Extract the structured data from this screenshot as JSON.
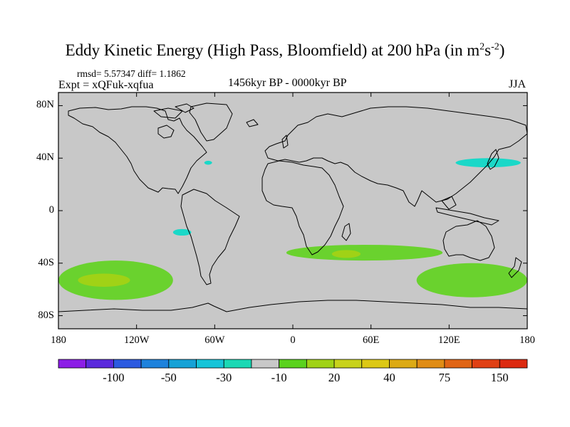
{
  "title": {
    "main": "Eddy Kinetic Energy (High Pass, Bloomfield) at 200 hPa (in m",
    "sup1": "2",
    "mid": "s",
    "sup2": "-2",
    "end": ")"
  },
  "stats": "rmsd= 5.57347 diff= 1.1862",
  "experiment": "Expt = xQFuk-xqfua",
  "period": "1456kyr BP - 0000kyr BP",
  "season": "JJA",
  "axes": {
    "y_labels": [
      "80N",
      "40N",
      "0",
      "40S",
      "80S"
    ],
    "x_labels": [
      "180",
      "120W",
      "60W",
      "0",
      "60E",
      "120E",
      "180"
    ]
  },
  "colorbar": {
    "colors": [
      "#8c1ee6",
      "#5a2adc",
      "#2c5ae0",
      "#1e82dc",
      "#16a2d6",
      "#16c4d8",
      "#1ad8b4",
      "#c8c8c8",
      "#5ad21e",
      "#a0d216",
      "#c8d21c",
      "#dcc814",
      "#dcaa14",
      "#e08c14",
      "#e06414",
      "#e04014",
      "#dc2a10"
    ],
    "tick_labels": [
      "-100",
      "-50",
      "-30",
      "-10",
      "20",
      "40",
      "75",
      "150"
    ]
  },
  "map": {
    "extent": {
      "lon": [
        -180,
        180
      ],
      "lat": [
        -90,
        90
      ]
    },
    "background_color": "#c8c8c8",
    "anomaly_regions": [
      {
        "name": "south-pacific-positive",
        "color": "#6ad22e",
        "lon_range": [
          -180,
          -92
        ],
        "lat_range": [
          -68,
          -38
        ]
      },
      {
        "name": "south-pacific-core",
        "color": "#a0d216",
        "lon_range": [
          -165,
          -125
        ],
        "lat_range": [
          -58,
          -48
        ]
      },
      {
        "name": "south-indian-positive",
        "color": "#6ad22e",
        "lon_range": [
          -5,
          115
        ],
        "lat_range": [
          -38,
          -26
        ]
      },
      {
        "name": "south-indian-core",
        "color": "#a0d216",
        "lon_range": [
          30,
          52
        ],
        "lat_range": [
          -36,
          -30
        ]
      },
      {
        "name": "australia-south-positive",
        "color": "#6ad22e",
        "lon_range": [
          95,
          180
        ],
        "lat_range": [
          -66,
          -40
        ]
      },
      {
        "name": "north-pacific-negative",
        "color": "#1ad8c8",
        "lon_range": [
          125,
          175
        ],
        "lat_range": [
          33,
          40
        ]
      },
      {
        "name": "north-atlantic-negative",
        "color": "#1ad8c8",
        "lon_range": [
          -68,
          -62
        ],
        "lat_range": [
          35,
          38
        ]
      },
      {
        "name": "east-pacific-negative",
        "color": "#1ad8c8",
        "lon_range": [
          -92,
          -78
        ],
        "lat_range": [
          -19,
          -14
        ]
      }
    ]
  }
}
